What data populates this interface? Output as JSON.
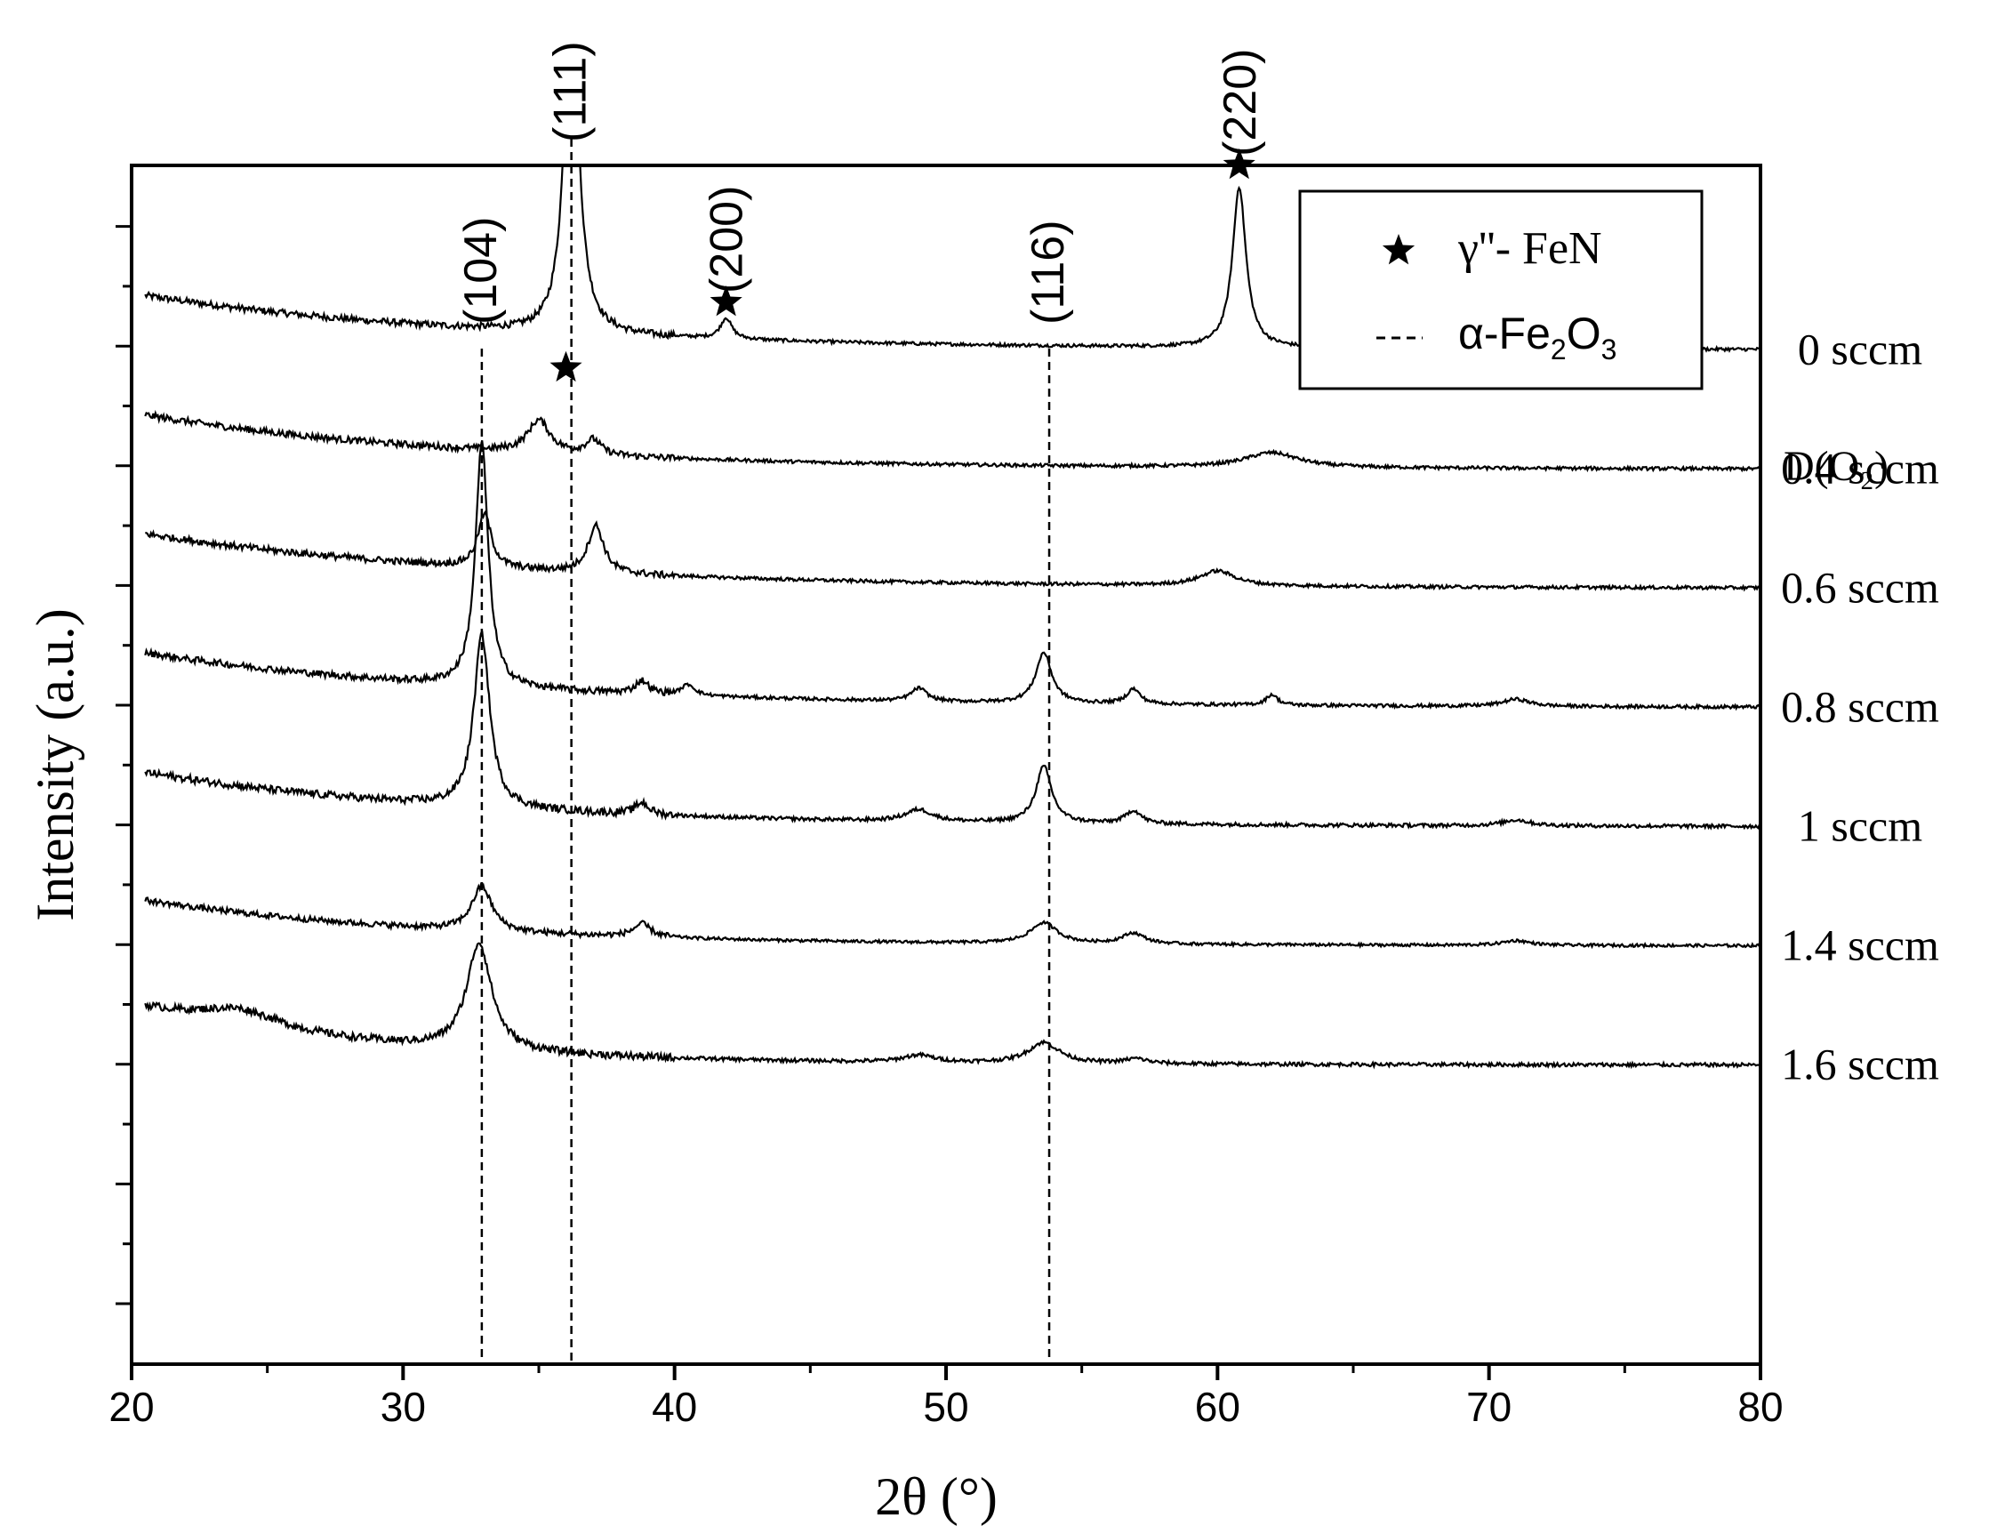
{
  "chart_data": {
    "type": "line",
    "xlabel": "2θ (°)",
    "ylabel": "Intensity (a.u.)",
    "xlim": [
      20,
      80
    ],
    "x_ticks": [
      20,
      30,
      40,
      50,
      60,
      70,
      80
    ],
    "x_minor_step": 5,
    "y_ticks_count": 20,
    "stack_label_header": "D(O₂)",
    "legend": {
      "position": "top-right",
      "entries": [
        {
          "marker": "star-icon",
          "label": "γ''- FeN"
        },
        {
          "marker": "dashed-line",
          "label_prefix": "α-Fe",
          "sub1": "2",
          "mid": "O",
          "sub2": "3"
        }
      ]
    },
    "reference_lines": [
      {
        "x": 32.9,
        "hkl": "(104)",
        "phase": "α-Fe2O3"
      },
      {
        "x": 36.2,
        "hkl": "(111)",
        "phase": "α-Fe2O3"
      },
      {
        "x": 53.8,
        "hkl": "(116)",
        "phase": "α-Fe2O3"
      }
    ],
    "peak_annotations": [
      {
        "x": 36.0,
        "level": 8.9,
        "label": "",
        "star": true
      },
      {
        "x": 41.9,
        "level": 10.0,
        "label": "(200)",
        "star": true
      },
      {
        "x": 60.8,
        "level": 12.3,
        "label": "(220)",
        "star": true
      },
      {
        "x": 72.8,
        "level": 10.2,
        "label": "",
        "star": true
      }
    ],
    "series": [
      {
        "name": "0 sccm",
        "offset": 9.2,
        "start": 0.95,
        "decay": 13,
        "noise": 0.08,
        "peaks": [
          {
            "x": 36.2,
            "h": 6.1,
            "w": 0.3
          },
          {
            "x": 41.9,
            "h": 0.35,
            "w": 0.25
          },
          {
            "x": 60.8,
            "h": 2.7,
            "w": 0.3
          },
          {
            "x": 72.8,
            "h": 0.45,
            "w": 0.45
          }
        ]
      },
      {
        "name": "0.4 sccm",
        "offset": 7.2,
        "start": 0.95,
        "decay": 12,
        "noise": 0.08,
        "peaks": [
          {
            "x": 35.0,
            "h": 0.55,
            "w": 0.5
          },
          {
            "x": 37.0,
            "h": 0.25,
            "w": 0.35
          },
          {
            "x": 62.0,
            "h": 0.25,
            "w": 1.2
          }
        ]
      },
      {
        "name": "0.6 sccm",
        "offset": 5.2,
        "start": 0.95,
        "decay": 13,
        "noise": 0.08,
        "peaks": [
          {
            "x": 33.0,
            "h": 0.9,
            "w": 0.3
          },
          {
            "x": 37.1,
            "h": 0.8,
            "w": 0.35
          },
          {
            "x": 60.0,
            "h": 0.25,
            "w": 0.8
          }
        ]
      },
      {
        "name": "0.8 sccm",
        "offset": 3.2,
        "start": 0.95,
        "decay": 13,
        "noise": 0.08,
        "peaks": [
          {
            "x": 32.9,
            "h": 4.1,
            "w": 0.28
          },
          {
            "x": 38.8,
            "h": 0.22,
            "w": 0.3
          },
          {
            "x": 40.5,
            "h": 0.18,
            "w": 0.3
          },
          {
            "x": 49.0,
            "h": 0.22,
            "w": 0.35
          },
          {
            "x": 53.6,
            "h": 0.85,
            "w": 0.35
          },
          {
            "x": 56.9,
            "h": 0.25,
            "w": 0.3
          },
          {
            "x": 62.0,
            "h": 0.18,
            "w": 0.25
          },
          {
            "x": 71.0,
            "h": 0.12,
            "w": 0.6
          }
        ]
      },
      {
        "name": "1 sccm",
        "offset": 1.2,
        "start": 0.95,
        "decay": 12,
        "noise": 0.09,
        "peaks": [
          {
            "x": 32.9,
            "h": 2.9,
            "w": 0.35
          },
          {
            "x": 38.8,
            "h": 0.2,
            "w": 0.3
          },
          {
            "x": 49.0,
            "h": 0.2,
            "w": 0.6
          },
          {
            "x": 53.6,
            "h": 0.95,
            "w": 0.35
          },
          {
            "x": 56.9,
            "h": 0.22,
            "w": 0.35
          },
          {
            "x": 71.0,
            "h": 0.1,
            "w": 0.6
          }
        ]
      },
      {
        "name": "1.4 sccm",
        "offset": -0.8,
        "start": 0.8,
        "decay": 11,
        "noise": 0.07,
        "peaks": [
          {
            "x": 32.9,
            "h": 0.75,
            "w": 0.45
          },
          {
            "x": 38.8,
            "h": 0.22,
            "w": 0.4
          },
          {
            "x": 53.6,
            "h": 0.35,
            "w": 0.6
          },
          {
            "x": 56.9,
            "h": 0.18,
            "w": 0.5
          },
          {
            "x": 71.0,
            "h": 0.08,
            "w": 0.6
          }
        ]
      },
      {
        "name": "1.6 sccm",
        "offset": -2.8,
        "start": 1.0,
        "decay": 9,
        "noise": 0.09,
        "peaks": [
          {
            "x": 32.8,
            "h": 1.8,
            "w": 0.55
          },
          {
            "x": 24.0,
            "h": 0.3,
            "w": 1.8
          },
          {
            "x": 49.0,
            "h": 0.12,
            "w": 0.7
          },
          {
            "x": 53.6,
            "h": 0.35,
            "w": 0.7
          },
          {
            "x": 57.0,
            "h": 0.08,
            "w": 0.5
          }
        ]
      }
    ]
  }
}
